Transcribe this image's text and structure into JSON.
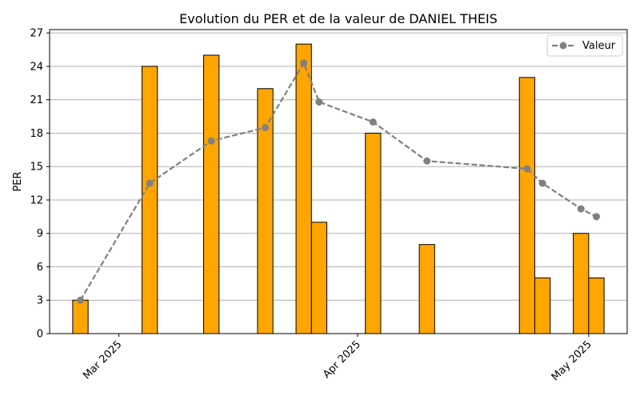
{
  "chart_data": {
    "type": "bar",
    "title": "Evolution du PER et de la valeur de DANIEL THEIS",
    "xlabel": "",
    "ylabel": "PER",
    "ylim": [
      0,
      27.3
    ],
    "yticks": [
      0,
      3,
      6,
      9,
      12,
      15,
      18,
      21,
      24,
      27
    ],
    "xlim": [
      "2025-02-20",
      "2025-05-06"
    ],
    "xticks": [
      {
        "date": "2025-03-01",
        "label": "Mar 2025"
      },
      {
        "date": "2025-04-01",
        "label": "Apr 2025"
      },
      {
        "date": "2025-05-01",
        "label": "May 2025"
      }
    ],
    "grid": {
      "y": true,
      "x": false
    },
    "legend": {
      "position": "top-right",
      "entries": [
        "Valeur"
      ]
    },
    "bar_color": "#ffa500",
    "bar_edge_color": "#000000",
    "line_color": "#808080",
    "series": [
      {
        "kind": "bar",
        "dates": [
          "2025-02-24",
          "2025-03-05",
          "2025-03-13",
          "2025-03-20",
          "2025-03-25",
          "2025-03-27",
          "2025-04-03",
          "2025-04-10",
          "2025-04-23",
          "2025-04-25",
          "2025-04-30",
          "2025-05-02"
        ],
        "values": [
          3,
          24,
          25,
          22,
          26,
          10,
          18,
          8,
          23,
          5,
          9,
          5
        ]
      },
      {
        "kind": "line",
        "name": "Valeur",
        "dates": [
          "2025-02-24",
          "2025-03-05",
          "2025-03-13",
          "2025-03-20",
          "2025-03-25",
          "2025-03-27",
          "2025-04-03",
          "2025-04-10",
          "2025-04-23",
          "2025-04-25",
          "2025-04-30",
          "2025-05-02"
        ],
        "values": [
          3.0,
          13.5,
          17.3,
          18.5,
          24.3,
          20.8,
          19.0,
          15.5,
          14.8,
          13.5,
          11.2,
          10.5
        ]
      }
    ]
  }
}
